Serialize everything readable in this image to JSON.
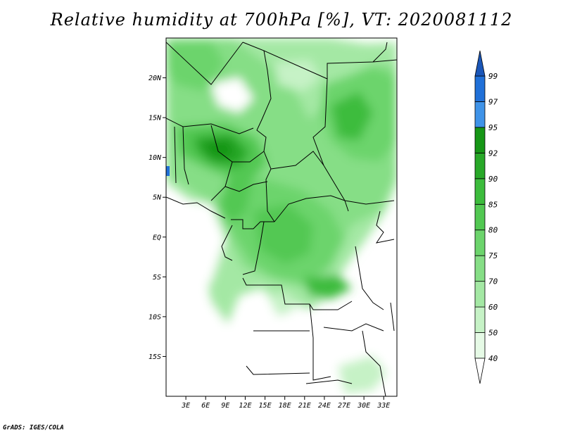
{
  "title": "Relative humidity at 700hPa [%], VT: 2020081112",
  "credit": "GrADS: IGES/COLA",
  "map": {
    "lat_labels": [
      "20N",
      "15N",
      "10N",
      "5N",
      "EQ",
      "5S",
      "10S",
      "15S"
    ],
    "lat_values": [
      20,
      15,
      10,
      5,
      0,
      -5,
      -10,
      -15
    ],
    "lon_labels": [
      "3E",
      "6E",
      "9E",
      "12E",
      "15E",
      "18E",
      "21E",
      "24E",
      "27E",
      "30E",
      "33E"
    ],
    "lon_values": [
      3,
      6,
      9,
      12,
      15,
      18,
      21,
      24,
      27,
      30,
      33
    ],
    "lon_range": [
      0,
      35
    ],
    "lat_range": [
      -20,
      25
    ]
  },
  "colorbar": {
    "levels": [
      "40",
      "50",
      "60",
      "70",
      "75",
      "80",
      "85",
      "90",
      "92",
      "95",
      "97",
      "99"
    ],
    "colors": [
      "#e6fae6",
      "#c6f2c6",
      "#a4e8a4",
      "#86de86",
      "#6cd46c",
      "#52c852",
      "#3cbc3c",
      "#28a828",
      "#169616",
      "#3f93e8",
      "#2070d8",
      "#1a56b8"
    ],
    "under_color": "#ffffff",
    "over_color": "#1a56b8"
  }
}
